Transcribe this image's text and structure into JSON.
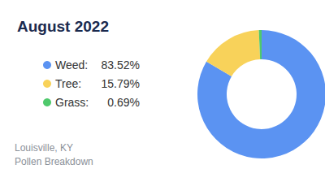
{
  "chart_data": {
    "type": "pie",
    "title": "August 2022",
    "categories": [
      "Weed:",
      "Tree:",
      "Grass:"
    ],
    "values": [
      83.52,
      15.79,
      0.69
    ],
    "value_labels": [
      "83.52%",
      "15.79%",
      "0.69%"
    ],
    "colors": [
      "#5b93f2",
      "#f8d25a",
      "#4fc96c"
    ],
    "legend": "left",
    "annotations": [
      "Louisville, KY",
      "Pollen Breakdown"
    ]
  }
}
